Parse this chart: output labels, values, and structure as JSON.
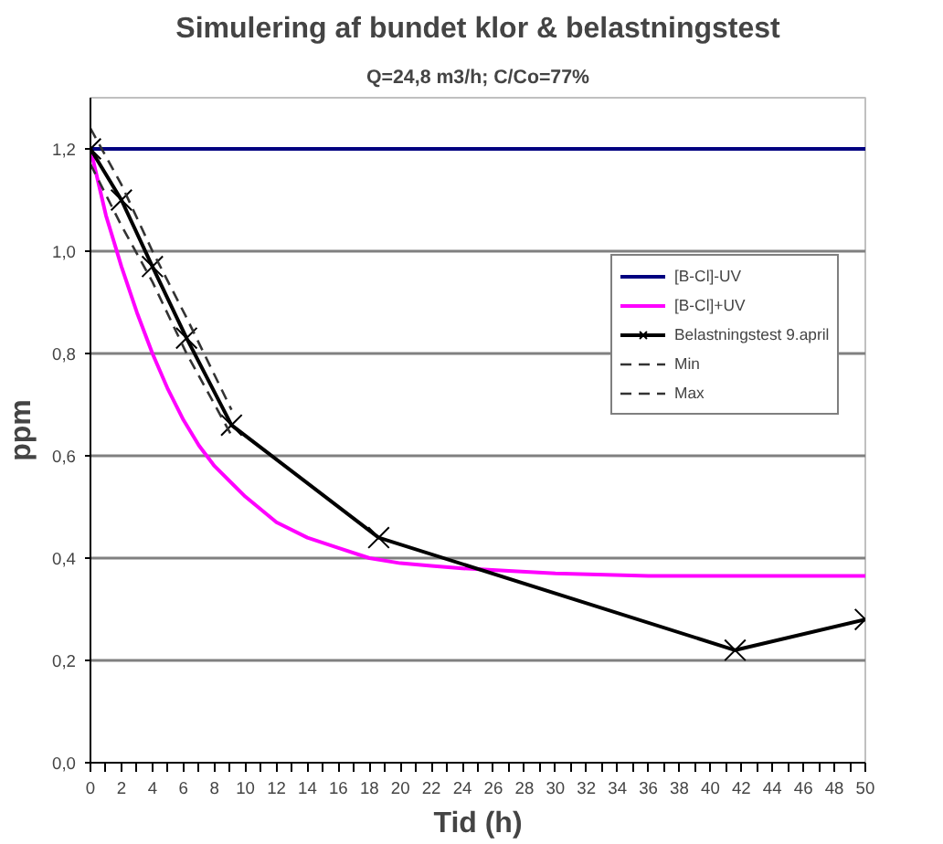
{
  "chart_data": {
    "type": "line",
    "title": "Simulering af bundet klor & belastningstest",
    "subtitle": "Q=24,8 m3/h; C/Co=77%",
    "xlabel": "Tid (h)",
    "ylabel": "ppm",
    "xlim": [
      0,
      50
    ],
    "ylim": [
      0,
      1.3
    ],
    "xticks": [
      0,
      {
        "value": 1,
        "label": null
      },
      2,
      {
        "value": 3,
        "label": null
      },
      4,
      {
        "value": 5,
        "label": null
      },
      6,
      {
        "value": 7,
        "label": null
      },
      8,
      {
        "value": 9,
        "label": null
      },
      10,
      {
        "value": 11,
        "label": null
      },
      12,
      {
        "value": 13,
        "label": null
      },
      14,
      {
        "value": 15,
        "label": null
      },
      16,
      {
        "value": 17,
        "label": null
      },
      18,
      {
        "value": 19,
        "label": null
      },
      20,
      {
        "value": 21,
        "label": null
      },
      22,
      {
        "value": 23,
        "label": null
      },
      24,
      {
        "value": 25,
        "label": null
      },
      26,
      {
        "value": 27,
        "label": null
      },
      28,
      {
        "value": 29,
        "label": null
      },
      30,
      {
        "value": 31,
        "label": null
      },
      32,
      {
        "value": 33,
        "label": null
      },
      34,
      {
        "value": 35,
        "label": null
      },
      36,
      {
        "value": 37,
        "label": null
      },
      38,
      {
        "value": 39,
        "label": null
      },
      40,
      {
        "value": 41,
        "label": null
      },
      42,
      {
        "value": 43,
        "label": null
      },
      44,
      {
        "value": 45,
        "label": null
      },
      46,
      {
        "value": 47,
        "label": null
      },
      48,
      {
        "value": 49,
        "label": null
      },
      50
    ],
    "yticks": [
      {
        "value": 0,
        "label": "0,0"
      },
      {
        "value": 0.2,
        "label": "0,2"
      },
      {
        "value": 0.4,
        "label": "0,4"
      },
      {
        "value": 0.6,
        "label": "0,6"
      },
      {
        "value": 0.8,
        "label": "0,8"
      },
      {
        "value": 1.0,
        "label": "1,0"
      },
      {
        "value": 1.2,
        "label": "1,2"
      }
    ],
    "grid": "y",
    "legend": "top right",
    "series": [
      {
        "name": "[B-Cl]-UV",
        "color": "#000080",
        "marker": "none",
        "line_style": "solid",
        "x": [
          0,
          50
        ],
        "values": [
          1.2,
          1.2
        ]
      },
      {
        "name": "[B-Cl]+UV",
        "color": "#ff00ff",
        "marker": "none",
        "line_style": "solid",
        "x": [
          0,
          1,
          2,
          3,
          4,
          5,
          6,
          7,
          8,
          10,
          12,
          14,
          16,
          18,
          20,
          22,
          24,
          27,
          30,
          36,
          50
        ],
        "values": [
          1.2,
          1.07,
          0.97,
          0.88,
          0.8,
          0.73,
          0.67,
          0.62,
          0.58,
          0.52,
          0.47,
          0.44,
          0.42,
          0.4,
          0.39,
          0.385,
          0.38,
          0.375,
          0.37,
          0.365,
          0.365
        ]
      },
      {
        "name": "Belastningstest 9.april",
        "color": "#000000",
        "marker": "cross",
        "line_style": "solid",
        "x": [
          0,
          2,
          4,
          6.2,
          9.1,
          18.6,
          41.6,
          50
        ],
        "values": [
          1.2,
          1.1,
          0.97,
          0.83,
          0.66,
          0.44,
          0.22,
          0.28
        ]
      },
      {
        "name": "Min",
        "color": "#333333",
        "marker": "none",
        "line_style": "dashed",
        "x": [
          0,
          2,
          4,
          6.2,
          9.1
        ],
        "values": [
          1.17,
          1.05,
          0.94,
          0.8,
          0.64
        ]
      },
      {
        "name": "Max",
        "color": "#333333",
        "marker": "none",
        "line_style": "dashed",
        "x": [
          0,
          2,
          4,
          6.2,
          9.1
        ],
        "values": [
          1.24,
          1.13,
          1.0,
          0.87,
          0.69
        ]
      }
    ]
  }
}
